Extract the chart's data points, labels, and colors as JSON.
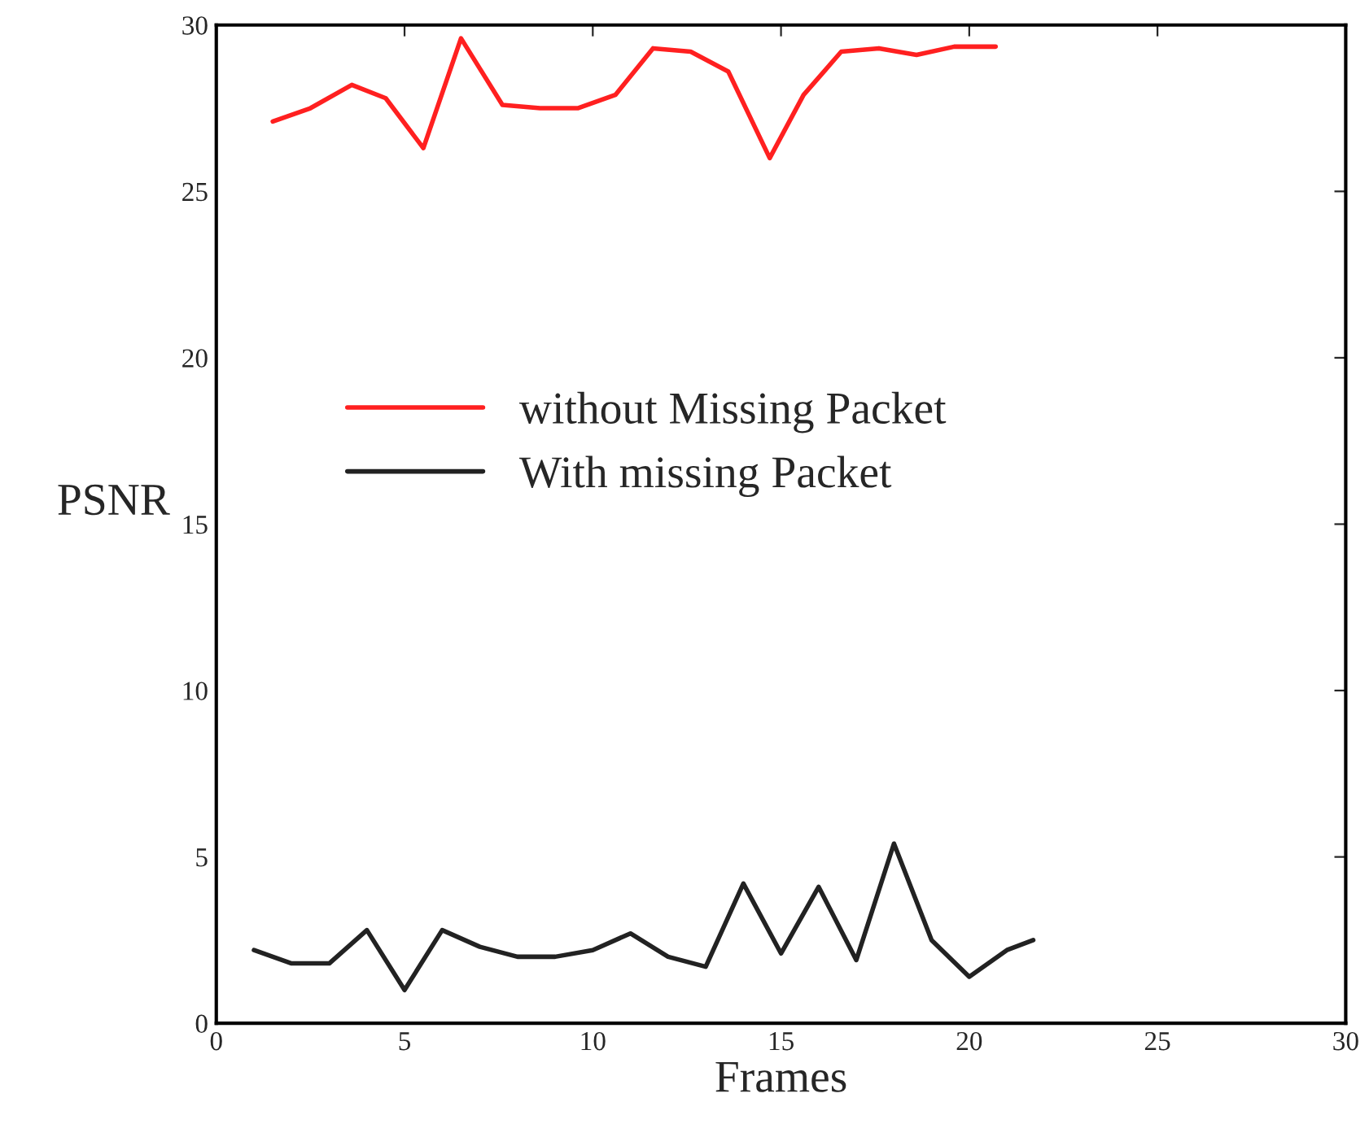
{
  "chart_data": {
    "type": "line",
    "xlabel": "Frames",
    "ylabel": "PSNR",
    "xlim": [
      0,
      30
    ],
    "ylim": [
      0,
      30
    ],
    "xticks": [
      0,
      5,
      10,
      15,
      20,
      25,
      30
    ],
    "yticks": [
      0,
      5,
      10,
      15,
      20,
      25,
      30
    ],
    "grid": false,
    "legend": "left",
    "series": [
      {
        "name": "without Missing Packet",
        "color": "#ff2020",
        "x": [
          1.5,
          2.5,
          3.6,
          4.5,
          5.5,
          6.5,
          7.6,
          8.6,
          9.6,
          10.6,
          11.6,
          12.6,
          13.6,
          14.7,
          15.6,
          16.6,
          17.6,
          18.6,
          19.6,
          20.7
        ],
        "values": [
          27.1,
          27.5,
          28.2,
          27.8,
          26.3,
          29.6,
          27.6,
          27.5,
          27.5,
          27.9,
          29.3,
          29.2,
          28.6,
          26.0,
          27.9,
          29.2,
          29.3,
          29.1,
          29.35,
          29.35
        ]
      },
      {
        "name": "With missing Packet",
        "color": "#222222",
        "x": [
          1,
          2,
          3,
          4,
          5,
          6,
          7,
          8,
          9,
          10,
          11,
          12,
          13,
          14,
          15,
          16,
          17,
          18,
          19,
          20,
          21,
          21.7
        ],
        "values": [
          2.2,
          1.8,
          1.8,
          2.8,
          1.0,
          2.8,
          2.3,
          2.0,
          2.0,
          2.2,
          2.7,
          2.0,
          1.7,
          4.2,
          2.1,
          4.1,
          1.9,
          5.4,
          2.5,
          1.4,
          2.2,
          2.5
        ]
      }
    ]
  }
}
